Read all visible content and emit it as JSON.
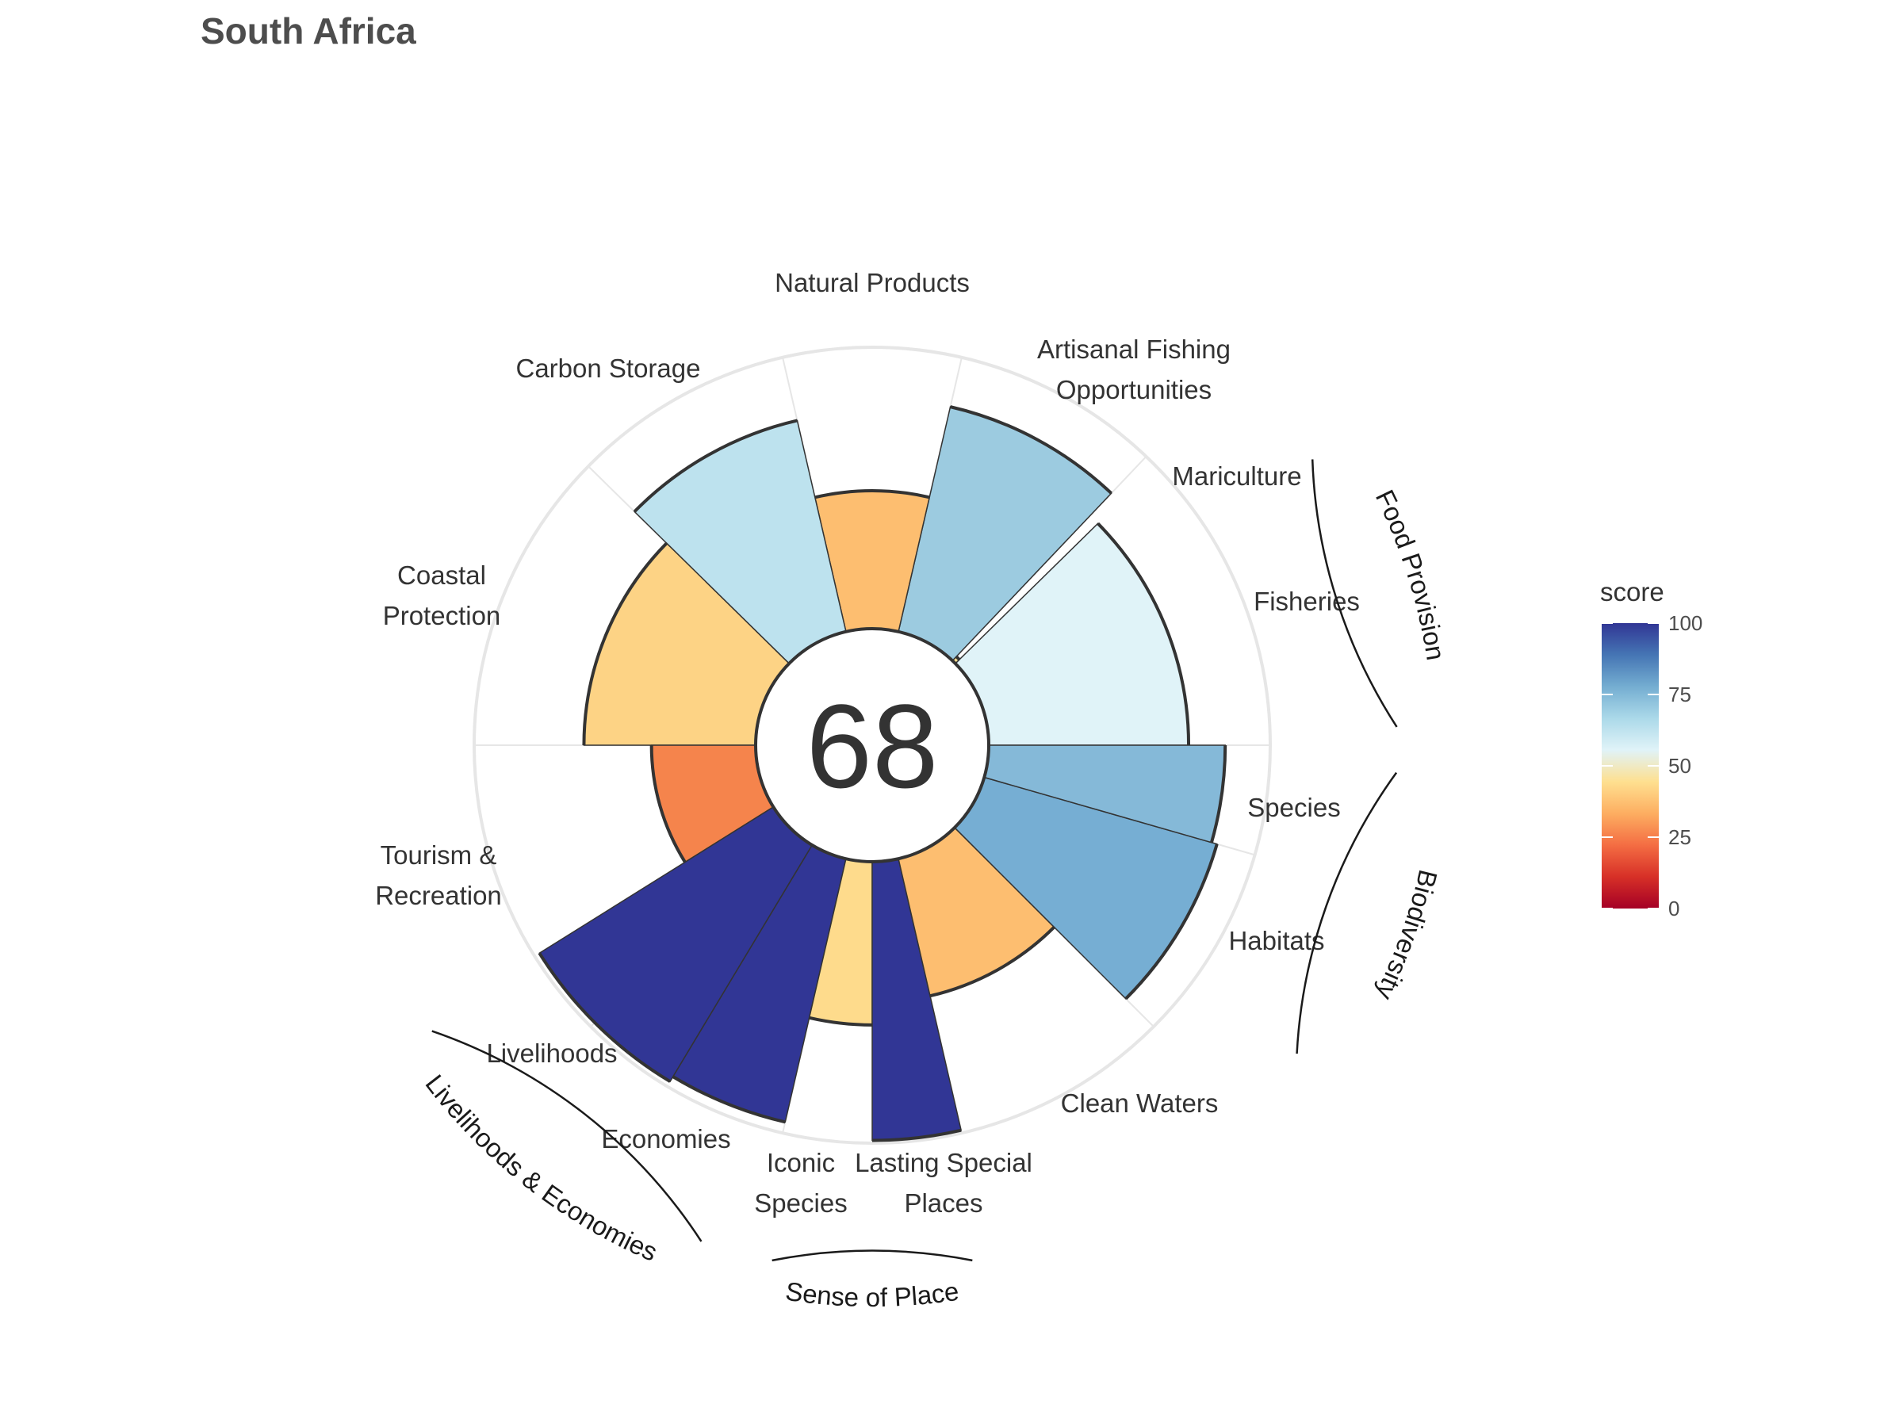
{
  "chart_data": {
    "type": "flower",
    "title": "South Africa",
    "center_score": "68",
    "score_range": [
      0,
      100
    ],
    "petals": [
      {
        "label": "Fisheries",
        "score": 71,
        "color": "#e0f3f8"
      },
      {
        "label": "Mariculture",
        "score": 2,
        "color": "#fee090"
      },
      {
        "label": "Artisanal Fishing Opportunities",
        "score": 82,
        "color": "#9ccbe0"
      },
      {
        "label": "Natural Products",
        "score": 49,
        "color": "#fdbe70"
      },
      {
        "label": "Carbon Storage",
        "score": 77,
        "color": "#bde2ee"
      },
      {
        "label": "Coastal Protection",
        "score": 61,
        "color": "#fdd385"
      },
      {
        "label": "Tourism & Recreation",
        "score": 37,
        "color": "#f5844c"
      },
      {
        "label": "Livelihoods",
        "score": 98,
        "color": "#313695"
      },
      {
        "label": "Economies",
        "score": 96,
        "color": "#313695"
      },
      {
        "label": "Iconic Species",
        "score": 58,
        "color": "#fedb8c"
      },
      {
        "label": "Lasting Special Places",
        "score": 99,
        "color": "#313695"
      },
      {
        "label": "Clean Waters",
        "score": 50,
        "color": "#fdbe70"
      },
      {
        "label": "Habitats",
        "score": 86,
        "color": "#76aed3"
      },
      {
        "label": "Species",
        "score": 84,
        "color": "#85b9d8"
      }
    ],
    "goal_labels": [
      {
        "lines": [
          "Fisheries"
        ]
      },
      {
        "lines": [
          "Mariculture"
        ]
      },
      {
        "lines": [
          "Artisanal Fishing",
          "Opportunities"
        ]
      },
      {
        "lines": [
          "Natural Products"
        ]
      },
      {
        "lines": [
          "Carbon Storage"
        ]
      },
      {
        "lines": [
          "Coastal",
          "Protection"
        ]
      },
      {
        "lines": [
          "Tourism &",
          "Recreation"
        ]
      },
      {
        "lines": [
          "Livelihoods"
        ]
      },
      {
        "lines": [
          "Economies"
        ]
      },
      {
        "lines": [
          "Iconic",
          "Species"
        ]
      },
      {
        "lines": [
          "Lasting Special",
          "Places"
        ]
      },
      {
        "lines": [
          "Clean Waters"
        ]
      },
      {
        "lines": [
          "Habitats"
        ]
      },
      {
        "lines": [
          "Species"
        ]
      }
    ],
    "groups": [
      {
        "label": "Food Provision"
      },
      {
        "label": "Biodiversity"
      },
      {
        "label": "Sense of Place"
      },
      {
        "label": "Livelihoods & Economies"
      }
    ],
    "legend": {
      "title": "score",
      "ticks": [
        "100",
        "75",
        "50",
        "25",
        "0"
      ],
      "tick_values": [
        100,
        75,
        50,
        25,
        0
      ],
      "colors": [
        "#313695",
        "#4575b4",
        "#74add1",
        "#abd9e9",
        "#e0f3f8",
        "#fee090",
        "#fdae61",
        "#f46d43",
        "#d73027",
        "#a50026"
      ]
    }
  }
}
